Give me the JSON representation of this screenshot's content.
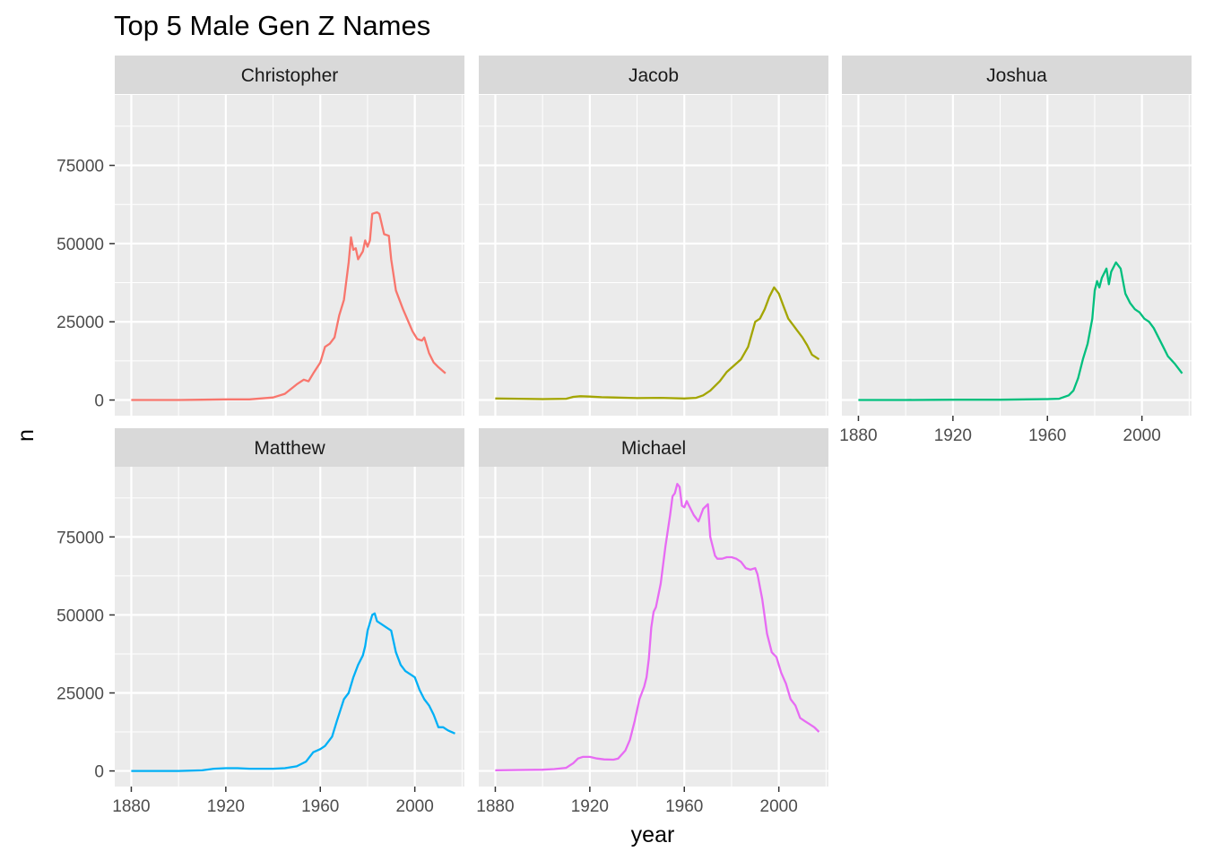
{
  "chart_data": {
    "type": "line",
    "title": "Top 5 Male Gen Z Names",
    "xlabel": "year",
    "ylabel": "n",
    "xlim": [
      1873,
      2021
    ],
    "ylim": [
      -5000,
      97500
    ],
    "x_ticks": [
      1880,
      1920,
      1960,
      2000
    ],
    "y_ticks": [
      0,
      25000,
      50000,
      75000
    ],
    "grid": true,
    "legend": "none",
    "facets": [
      {
        "name": "Christopher",
        "color": "#F8766D",
        "points": [
          [
            1880,
            0
          ],
          [
            1890,
            0
          ],
          [
            1900,
            0
          ],
          [
            1910,
            100
          ],
          [
            1920,
            200
          ],
          [
            1930,
            200
          ],
          [
            1940,
            800
          ],
          [
            1945,
            2000
          ],
          [
            1950,
            5000
          ],
          [
            1953,
            6500
          ],
          [
            1955,
            6000
          ],
          [
            1957,
            8500
          ],
          [
            1960,
            12000
          ],
          [
            1962,
            17000
          ],
          [
            1964,
            18000
          ],
          [
            1966,
            20000
          ],
          [
            1968,
            27000
          ],
          [
            1970,
            32000
          ],
          [
            1972,
            44000
          ],
          [
            1973,
            52000
          ],
          [
            1974,
            48000
          ],
          [
            1975,
            48500
          ],
          [
            1976,
            45000
          ],
          [
            1978,
            47500
          ],
          [
            1979,
            51000
          ],
          [
            1980,
            49000
          ],
          [
            1981,
            51000
          ],
          [
            1982,
            59500
          ],
          [
            1984,
            60000
          ],
          [
            1985,
            59500
          ],
          [
            1987,
            53000
          ],
          [
            1989,
            52500
          ],
          [
            1990,
            45000
          ],
          [
            1992,
            35000
          ],
          [
            1995,
            29000
          ],
          [
            1997,
            25500
          ],
          [
            1999,
            22000
          ],
          [
            2001,
            19500
          ],
          [
            2003,
            19000
          ],
          [
            2004,
            20000
          ],
          [
            2006,
            15000
          ],
          [
            2008,
            12000
          ],
          [
            2010,
            10500
          ],
          [
            2013,
            8500
          ]
        ]
      },
      {
        "name": "Jacob",
        "color": "#A3A500",
        "points": [
          [
            1880,
            500
          ],
          [
            1890,
            400
          ],
          [
            1900,
            300
          ],
          [
            1910,
            400
          ],
          [
            1913,
            1000
          ],
          [
            1916,
            1200
          ],
          [
            1920,
            1100
          ],
          [
            1925,
            900
          ],
          [
            1930,
            800
          ],
          [
            1940,
            600
          ],
          [
            1950,
            700
          ],
          [
            1960,
            500
          ],
          [
            1965,
            700
          ],
          [
            1968,
            1500
          ],
          [
            1971,
            3000
          ],
          [
            1975,
            6000
          ],
          [
            1978,
            9000
          ],
          [
            1981,
            11000
          ],
          [
            1984,
            13000
          ],
          [
            1987,
            17000
          ],
          [
            1990,
            25000
          ],
          [
            1992,
            26000
          ],
          [
            1994,
            29000
          ],
          [
            1996,
            33000
          ],
          [
            1998,
            36000
          ],
          [
            2000,
            34000
          ],
          [
            2002,
            30000
          ],
          [
            2004,
            26000
          ],
          [
            2006,
            24000
          ],
          [
            2008,
            22000
          ],
          [
            2010,
            20000
          ],
          [
            2012,
            17500
          ],
          [
            2014,
            14500
          ],
          [
            2017,
            13000
          ]
        ]
      },
      {
        "name": "Joshua",
        "color": "#00BF7D",
        "points": [
          [
            1880,
            0
          ],
          [
            1900,
            0
          ],
          [
            1920,
            100
          ],
          [
            1940,
            100
          ],
          [
            1960,
            300
          ],
          [
            1965,
            400
          ],
          [
            1969,
            1500
          ],
          [
            1971,
            3000
          ],
          [
            1973,
            7000
          ],
          [
            1975,
            13000
          ],
          [
            1977,
            18000
          ],
          [
            1979,
            26000
          ],
          [
            1980,
            35000
          ],
          [
            1981,
            38000
          ],
          [
            1982,
            36000
          ],
          [
            1983,
            39000
          ],
          [
            1985,
            42000
          ],
          [
            1986,
            37000
          ],
          [
            1987,
            41000
          ],
          [
            1989,
            44000
          ],
          [
            1991,
            42000
          ],
          [
            1993,
            34000
          ],
          [
            1995,
            31000
          ],
          [
            1997,
            29000
          ],
          [
            1999,
            28000
          ],
          [
            2001,
            26000
          ],
          [
            2003,
            25000
          ],
          [
            2005,
            23000
          ],
          [
            2007,
            20000
          ],
          [
            2009,
            17000
          ],
          [
            2011,
            14000
          ],
          [
            2014,
            11500
          ],
          [
            2017,
            8500
          ]
        ]
      },
      {
        "name": "Matthew",
        "color": "#00B0F6",
        "points": [
          [
            1880,
            0
          ],
          [
            1900,
            0
          ],
          [
            1910,
            200
          ],
          [
            1915,
            700
          ],
          [
            1920,
            900
          ],
          [
            1925,
            900
          ],
          [
            1930,
            700
          ],
          [
            1935,
            700
          ],
          [
            1940,
            700
          ],
          [
            1945,
            900
          ],
          [
            1950,
            1500
          ],
          [
            1954,
            3000
          ],
          [
            1957,
            6000
          ],
          [
            1960,
            7000
          ],
          [
            1962,
            8000
          ],
          [
            1965,
            11000
          ],
          [
            1967,
            16000
          ],
          [
            1970,
            23000
          ],
          [
            1972,
            25000
          ],
          [
            1974,
            30000
          ],
          [
            1976,
            34000
          ],
          [
            1978,
            37000
          ],
          [
            1979,
            40000
          ],
          [
            1980,
            45000
          ],
          [
            1982,
            50000
          ],
          [
            1983,
            50500
          ],
          [
            1984,
            48000
          ],
          [
            1986,
            47000
          ],
          [
            1988,
            46000
          ],
          [
            1990,
            45000
          ],
          [
            1992,
            38000
          ],
          [
            1994,
            34000
          ],
          [
            1996,
            32000
          ],
          [
            1998,
            31000
          ],
          [
            2000,
            30000
          ],
          [
            2002,
            26000
          ],
          [
            2004,
            23000
          ],
          [
            2006,
            21000
          ],
          [
            2008,
            18000
          ],
          [
            2010,
            14000
          ],
          [
            2012,
            14000
          ],
          [
            2014,
            13000
          ],
          [
            2017,
            12000
          ]
        ]
      },
      {
        "name": "Michael",
        "color": "#E76BF3",
        "points": [
          [
            1880,
            200
          ],
          [
            1890,
            300
          ],
          [
            1900,
            400
          ],
          [
            1905,
            600
          ],
          [
            1910,
            1000
          ],
          [
            1913,
            2500
          ],
          [
            1915,
            4000
          ],
          [
            1917,
            4500
          ],
          [
            1920,
            4500
          ],
          [
            1923,
            4000
          ],
          [
            1926,
            3700
          ],
          [
            1930,
            3600
          ],
          [
            1932,
            4000
          ],
          [
            1935,
            6500
          ],
          [
            1937,
            10000
          ],
          [
            1939,
            16000
          ],
          [
            1941,
            23000
          ],
          [
            1943,
            27000
          ],
          [
            1944,
            30000
          ],
          [
            1945,
            36000
          ],
          [
            1946,
            46000
          ],
          [
            1947,
            51000
          ],
          [
            1948,
            52500
          ],
          [
            1950,
            60000
          ],
          [
            1952,
            72000
          ],
          [
            1954,
            82000
          ],
          [
            1955,
            88000
          ],
          [
            1956,
            89000
          ],
          [
            1957,
            92000
          ],
          [
            1958,
            91000
          ],
          [
            1959,
            85000
          ],
          [
            1960,
            84500
          ],
          [
            1961,
            86500
          ],
          [
            1962,
            85000
          ],
          [
            1964,
            82000
          ],
          [
            1966,
            80000
          ],
          [
            1968,
            84000
          ],
          [
            1970,
            85500
          ],
          [
            1971,
            75000
          ],
          [
            1973,
            69000
          ],
          [
            1974,
            68000
          ],
          [
            1976,
            68000
          ],
          [
            1978,
            68500
          ],
          [
            1980,
            68500
          ],
          [
            1982,
            68000
          ],
          [
            1984,
            67000
          ],
          [
            1986,
            65000
          ],
          [
            1988,
            64500
          ],
          [
            1990,
            65000
          ],
          [
            1991,
            63000
          ],
          [
            1993,
            55000
          ],
          [
            1995,
            44000
          ],
          [
            1997,
            38000
          ],
          [
            1999,
            36500
          ],
          [
            2001,
            31500
          ],
          [
            2003,
            28000
          ],
          [
            2005,
            23000
          ],
          [
            2007,
            21000
          ],
          [
            2009,
            17000
          ],
          [
            2011,
            16000
          ],
          [
            2013,
            15000
          ],
          [
            2015,
            14000
          ],
          [
            2017,
            12500
          ]
        ]
      }
    ]
  }
}
